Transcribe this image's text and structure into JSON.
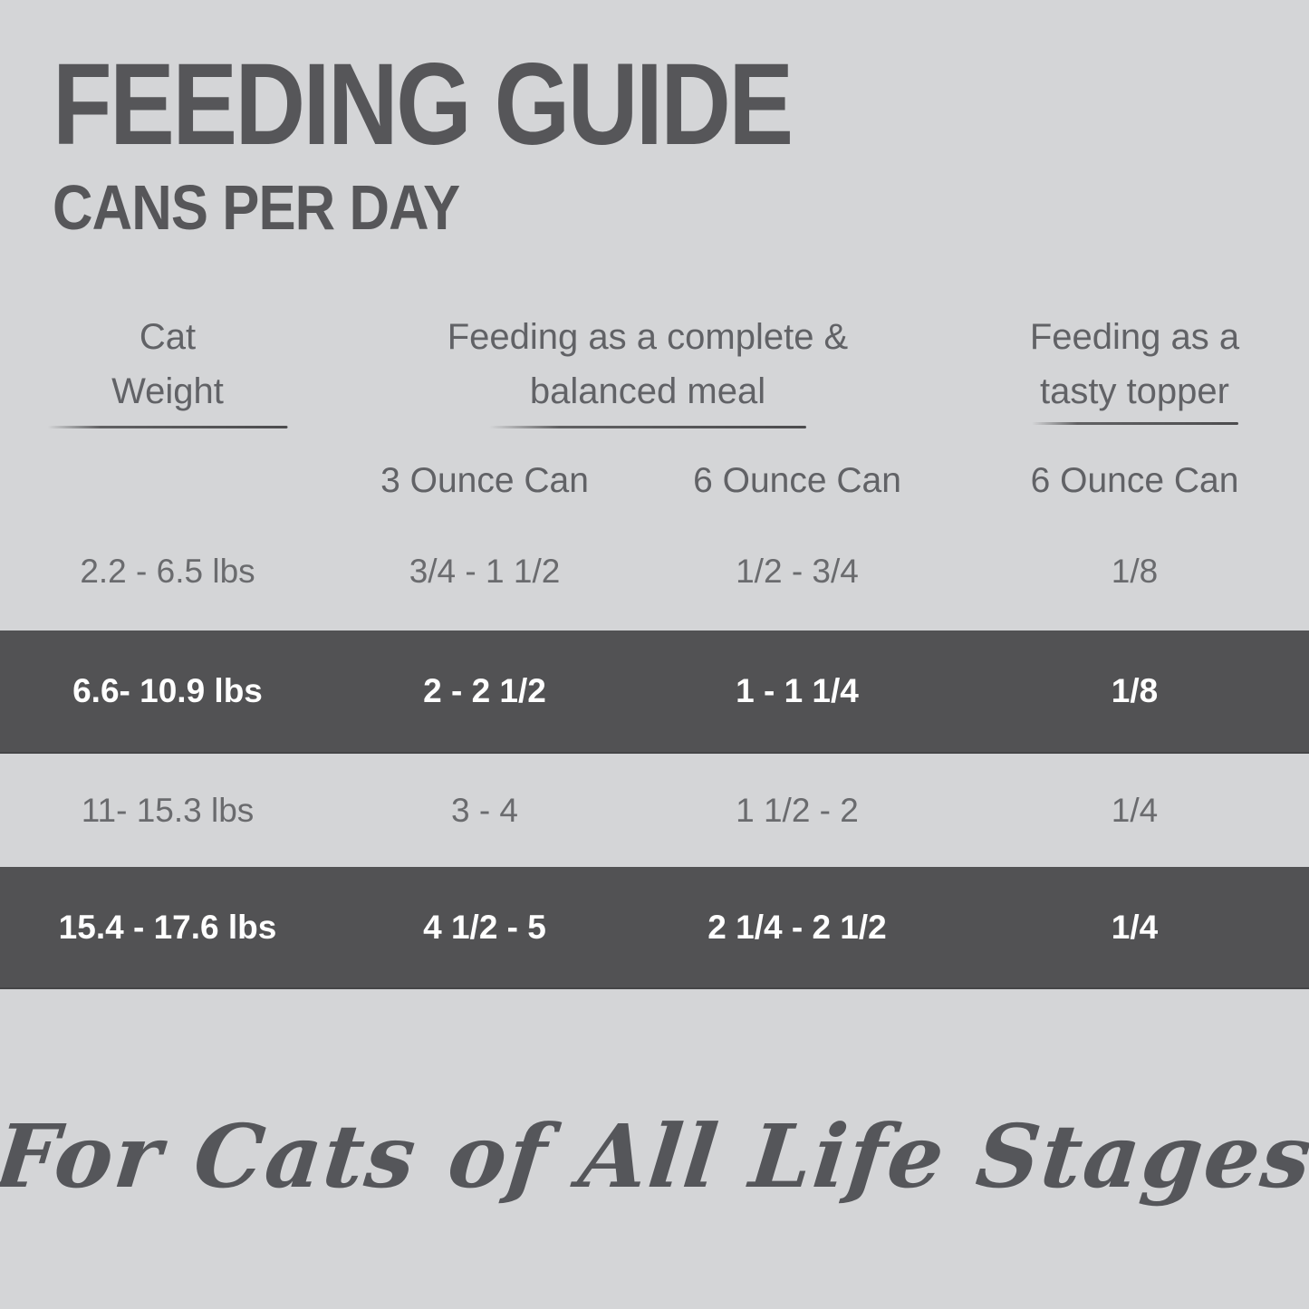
{
  "title": "FEEDING GUIDE",
  "subtitle": "CANS PER DAY",
  "table": {
    "col_weight": {
      "line1": "Cat",
      "line2": "Weight"
    },
    "group_meal": {
      "line1": "Feeding as a complete &",
      "line2": "balanced meal"
    },
    "group_topper": {
      "line1": "Feeding as a",
      "line2": "tasty topper"
    },
    "subheaders": [
      "3 Ounce Can",
      "6 Ounce Can",
      "6 Ounce Can"
    ],
    "rows": [
      {
        "cells": [
          "2.2 - 6.5 lbs",
          "3/4 - 1 1/2",
          "1/2 - 3/4",
          "1/8"
        ]
      },
      {
        "cells": [
          "6.6- 10.9 lbs",
          "2 - 2 1/2",
          "1 - 1 1/4",
          "1/8"
        ]
      },
      {
        "cells": [
          "11- 15.3 lbs",
          "3 - 4",
          "1 1/2 - 2",
          "1/4"
        ]
      },
      {
        "cells": [
          "15.4 - 17.6 lbs",
          "4 1/2 - 5",
          "2 1/4 - 2 1/2",
          "1/4"
        ]
      }
    ]
  },
  "footer": "For Cats of All Life Stages",
  "colors": {
    "background": "#d4d5d7",
    "dark_band": "#525254",
    "title_text": "#565659",
    "body_text": "#66676a",
    "dark_band_text": "#ffffff"
  },
  "chart_data": {
    "type": "table",
    "title": "FEEDING GUIDE",
    "subtitle": "CANS PER DAY",
    "columns": [
      "Cat Weight",
      "Feeding as a complete & balanced meal — 3 Ounce Can",
      "Feeding as a complete & balanced meal — 6 Ounce Can",
      "Feeding as a tasty topper — 6 Ounce Can"
    ],
    "rows": [
      [
        "2.2 - 6.5 lbs",
        "3/4 - 1 1/2",
        "1/2 - 3/4",
        "1/8"
      ],
      [
        "6.6- 10.9 lbs",
        "2 - 2 1/2",
        "1 - 1 1/4",
        "1/8"
      ],
      [
        "11- 15.3 lbs",
        "3 - 4",
        "1 1/2 - 2",
        "1/4"
      ],
      [
        "15.4 - 17.6 lbs",
        "4 1/2 - 5",
        "2 1/4 - 2 1/2",
        "1/4"
      ]
    ],
    "annotations": [
      "For Cats of All Life Stages"
    ]
  }
}
